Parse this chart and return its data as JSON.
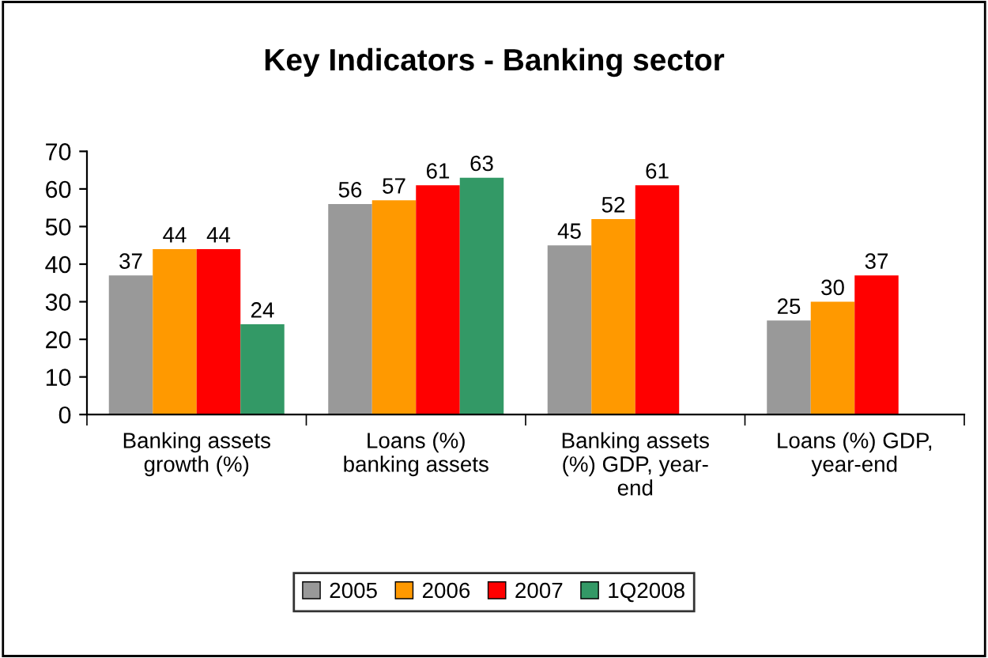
{
  "chart_data": {
    "type": "bar",
    "title": "Key Indicators - Banking sector",
    "categories": [
      "Banking assets\ngrowth (%)",
      "Loans (%)\nbanking assets",
      "Banking assets\n(%) GDP, year-\nend",
      "Loans (%) GDP,\nyear-end"
    ],
    "series": [
      {
        "name": "2005",
        "color": "#999999",
        "values": [
          37,
          56,
          45,
          25
        ]
      },
      {
        "name": "2006",
        "color": "#ff9900",
        "values": [
          44,
          57,
          52,
          30
        ]
      },
      {
        "name": "2007",
        "color": "#ff0000",
        "values": [
          44,
          61,
          61,
          37
        ]
      },
      {
        "name": "1Q2008",
        "color": "#339966",
        "values": [
          24,
          63,
          null,
          null
        ]
      }
    ],
    "ylim": [
      0,
      70
    ],
    "yticks": [
      0,
      10,
      20,
      30,
      40,
      50,
      60,
      70
    ],
    "grid": false,
    "legend": "bottom",
    "data_labels": true
  }
}
